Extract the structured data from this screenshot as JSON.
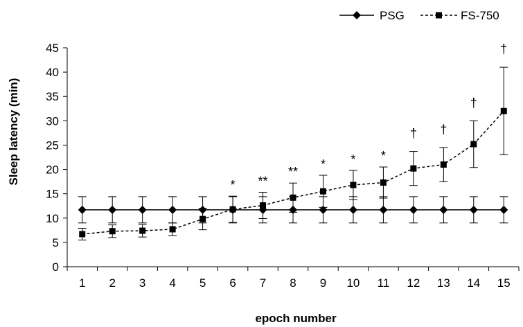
{
  "chart_data": {
    "type": "line",
    "xlabel": "epoch number",
    "ylabel": "Sleep latency  (min)",
    "ylim": [
      0,
      45
    ],
    "yticks": [
      0,
      5,
      10,
      15,
      20,
      25,
      30,
      35,
      40,
      45
    ],
    "x": [
      1,
      2,
      3,
      4,
      5,
      6,
      7,
      8,
      9,
      10,
      11,
      12,
      13,
      14,
      15
    ],
    "legend_position": "top-right",
    "grid": false,
    "series": [
      {
        "name": "PSG",
        "color": "#000000",
        "line_style": "solid",
        "marker": "diamond",
        "values": [
          11.7,
          11.7,
          11.7,
          11.7,
          11.7,
          11.7,
          11.7,
          11.7,
          11.7,
          11.7,
          11.7,
          11.7,
          11.7,
          11.7,
          11.7
        ],
        "error": [
          2.7,
          2.7,
          2.7,
          2.7,
          2.7,
          2.7,
          2.7,
          2.7,
          2.7,
          2.7,
          2.7,
          2.7,
          2.7,
          2.7,
          2.7
        ]
      },
      {
        "name": "FS-750",
        "color": "#000000",
        "line_style": "dashed",
        "marker": "square",
        "values": [
          6.7,
          7.3,
          7.4,
          7.7,
          9.8,
          11.8,
          12.6,
          14.2,
          15.5,
          16.8,
          17.3,
          20.2,
          21.0,
          25.2,
          32.0
        ],
        "error": [
          1.2,
          1.3,
          1.3,
          1.3,
          2.2,
          2.7,
          2.7,
          3.0,
          3.3,
          3.0,
          3.2,
          3.5,
          3.5,
          4.8,
          9.0
        ]
      }
    ],
    "annotations": [
      {
        "x": 6,
        "text": "*"
      },
      {
        "x": 7,
        "text": "**"
      },
      {
        "x": 8,
        "text": "**"
      },
      {
        "x": 9,
        "text": "*"
      },
      {
        "x": 10,
        "text": "*"
      },
      {
        "x": 11,
        "text": "*"
      },
      {
        "x": 12,
        "text": "†"
      },
      {
        "x": 13,
        "text": "†"
      },
      {
        "x": 14,
        "text": "†"
      },
      {
        "x": 15,
        "text": "†"
      }
    ]
  }
}
